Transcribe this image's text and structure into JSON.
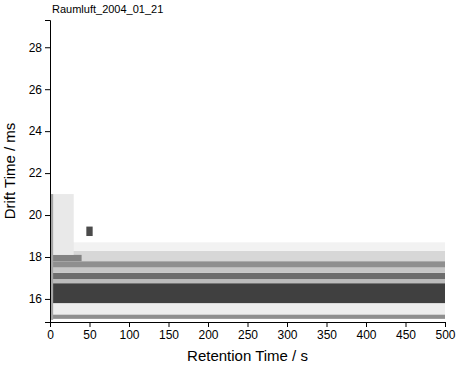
{
  "chart_data": {
    "type": "heatmap",
    "title": "Raumluft_2004_01_21",
    "x_label": "Retention Time / s",
    "y_label": "Drift Time / ms",
    "xlim": [
      0,
      500
    ],
    "ylim": [
      14.9,
      29.3
    ],
    "xticks": [
      0,
      50,
      100,
      150,
      200,
      250,
      300,
      350,
      400,
      450,
      500
    ],
    "yticks": [
      16,
      18,
      20,
      22,
      24,
      26,
      28
    ],
    "zlim": [
      0,
      100
    ],
    "color": "#1e1e1e",
    "cells": [
      {
        "x0": 0,
        "x1": 500,
        "y0": 15.25,
        "y1": 15.8,
        "value": 8
      },
      {
        "x0": 0,
        "x1": 500,
        "y0": 15.05,
        "y1": 15.25,
        "value": 50
      },
      {
        "x0": 0,
        "x1": 500,
        "y0": 15.8,
        "y1": 16.75,
        "value": 85
      },
      {
        "x0": 0,
        "x1": 500,
        "y0": 16.75,
        "y1": 16.95,
        "value": 30
      },
      {
        "x0": 0,
        "x1": 500,
        "y0": 16.95,
        "y1": 17.25,
        "value": 65
      },
      {
        "x0": 0,
        "x1": 500,
        "y0": 17.25,
        "y1": 17.5,
        "value": 25
      },
      {
        "x0": 0,
        "x1": 500,
        "y0": 17.5,
        "y1": 17.8,
        "value": 50
      },
      {
        "x0": 0,
        "x1": 500,
        "y0": 17.8,
        "y1": 18.3,
        "value": 18
      },
      {
        "x0": 0,
        "x1": 500,
        "y0": 18.3,
        "y1": 18.7,
        "value": 6
      },
      {
        "x0": 0,
        "x1": 40,
        "y0": 17.8,
        "y1": 18.1,
        "value": 55
      },
      {
        "x0": 0,
        "x1": 30,
        "y0": 18.1,
        "y1": 21,
        "value": 10
      },
      {
        "x0": 0,
        "x1": 4,
        "y0": 15,
        "y1": 21,
        "value": 40
      },
      {
        "x0": 46,
        "x1": 54,
        "y0": 19.0,
        "y1": 19.45,
        "value": 80
      }
    ]
  }
}
